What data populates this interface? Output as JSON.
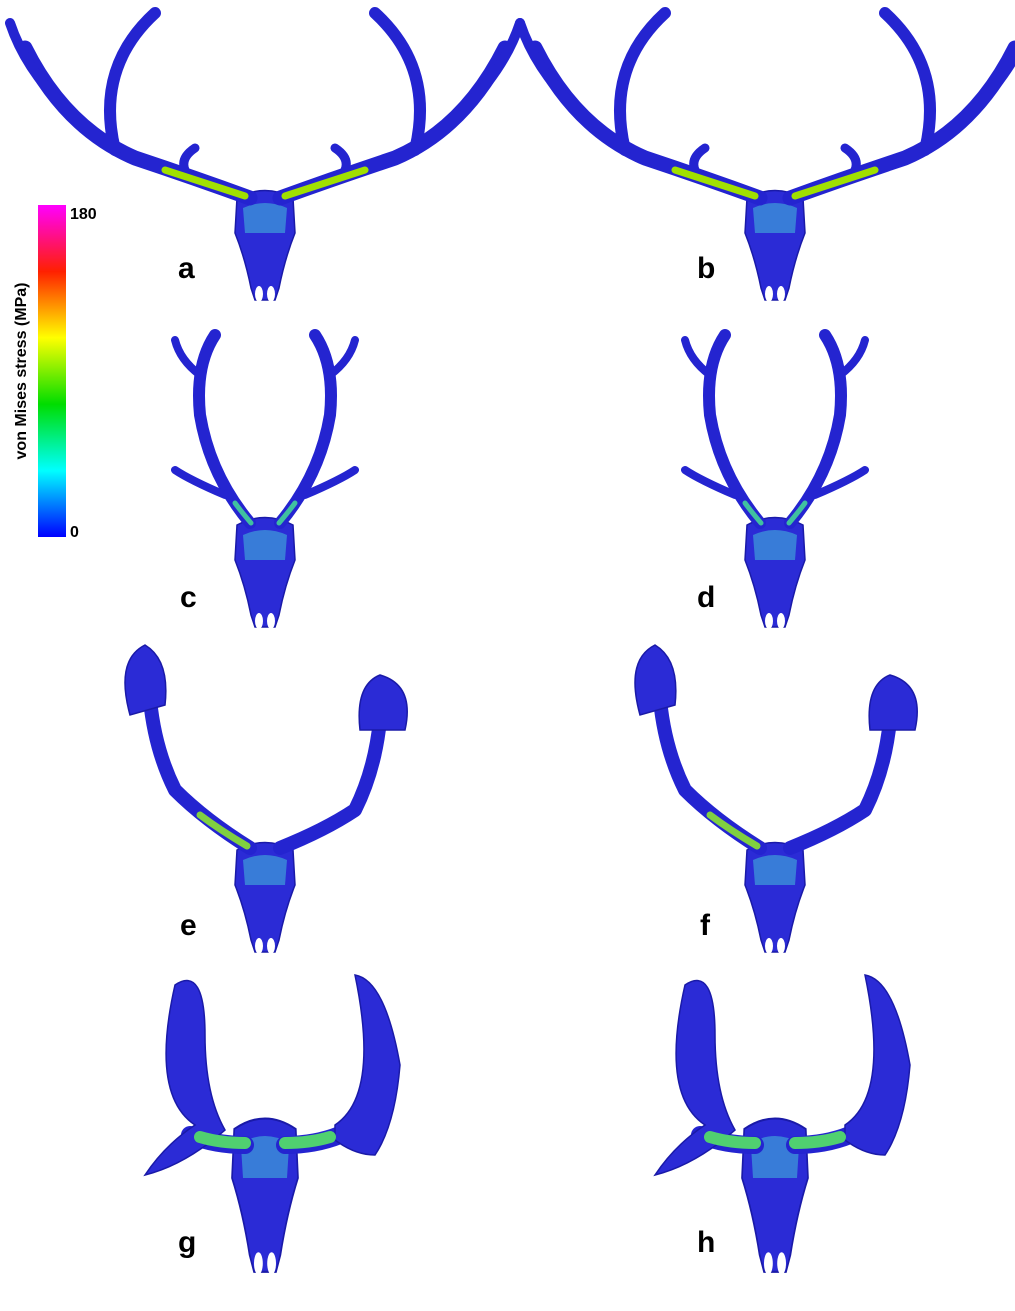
{
  "colorbar": {
    "label": "von Mises stress (MPa)",
    "max": 180,
    "min": 0
  },
  "panels": [
    {
      "label": "a"
    },
    {
      "label": "b"
    },
    {
      "label": "c"
    },
    {
      "label": "d"
    },
    {
      "label": "e"
    },
    {
      "label": "f"
    },
    {
      "label": "g"
    },
    {
      "label": "h"
    }
  ]
}
